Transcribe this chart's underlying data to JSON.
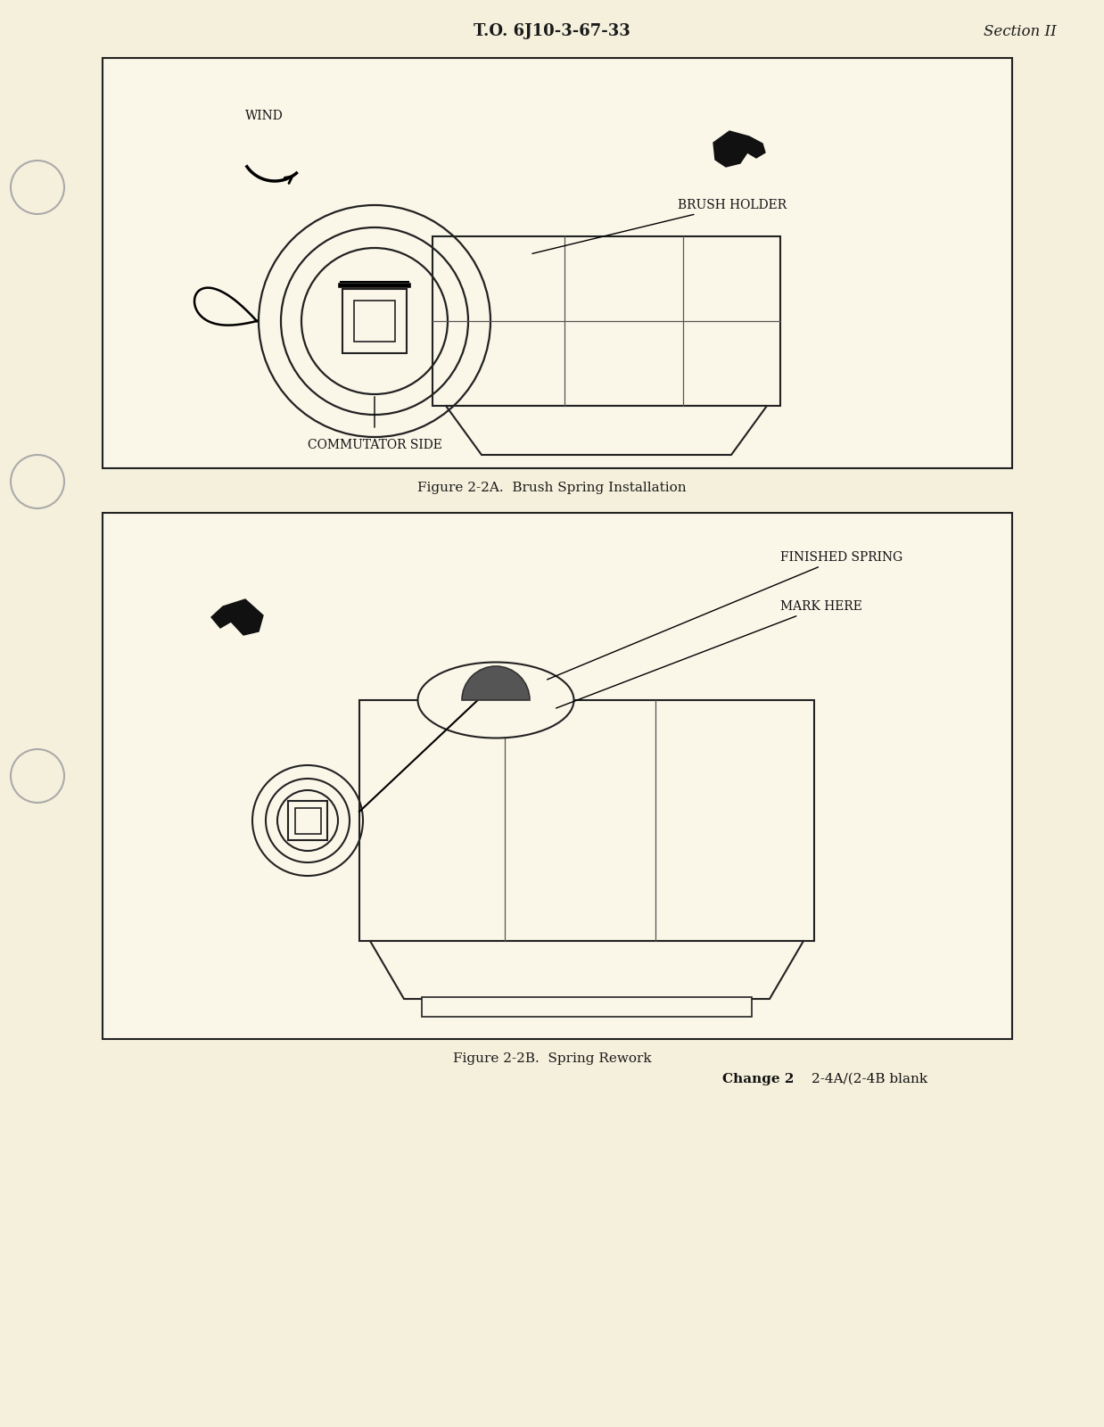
{
  "page_bg": "#f5f0dc",
  "box_bg": "#faf6e8",
  "header_text": "T.O. 6J10-3-67-33",
  "header_right": "Section II",
  "footer_left_bold": "Change 2",
  "footer_right": "2-4A/(2-4B blank",
  "fig1_caption": "Figure 2-2A.  Brush Spring Installation",
  "fig2_caption": "Figure 2-2B.  Spring Rework",
  "label_wind": "WIND",
  "label_brush_holder": "BRUSH HOLDER",
  "label_commutator": "COMMUTATOR SIDE",
  "label_finished_spring": "FINISHED SPRING",
  "label_mark_here": "MARK HERE"
}
